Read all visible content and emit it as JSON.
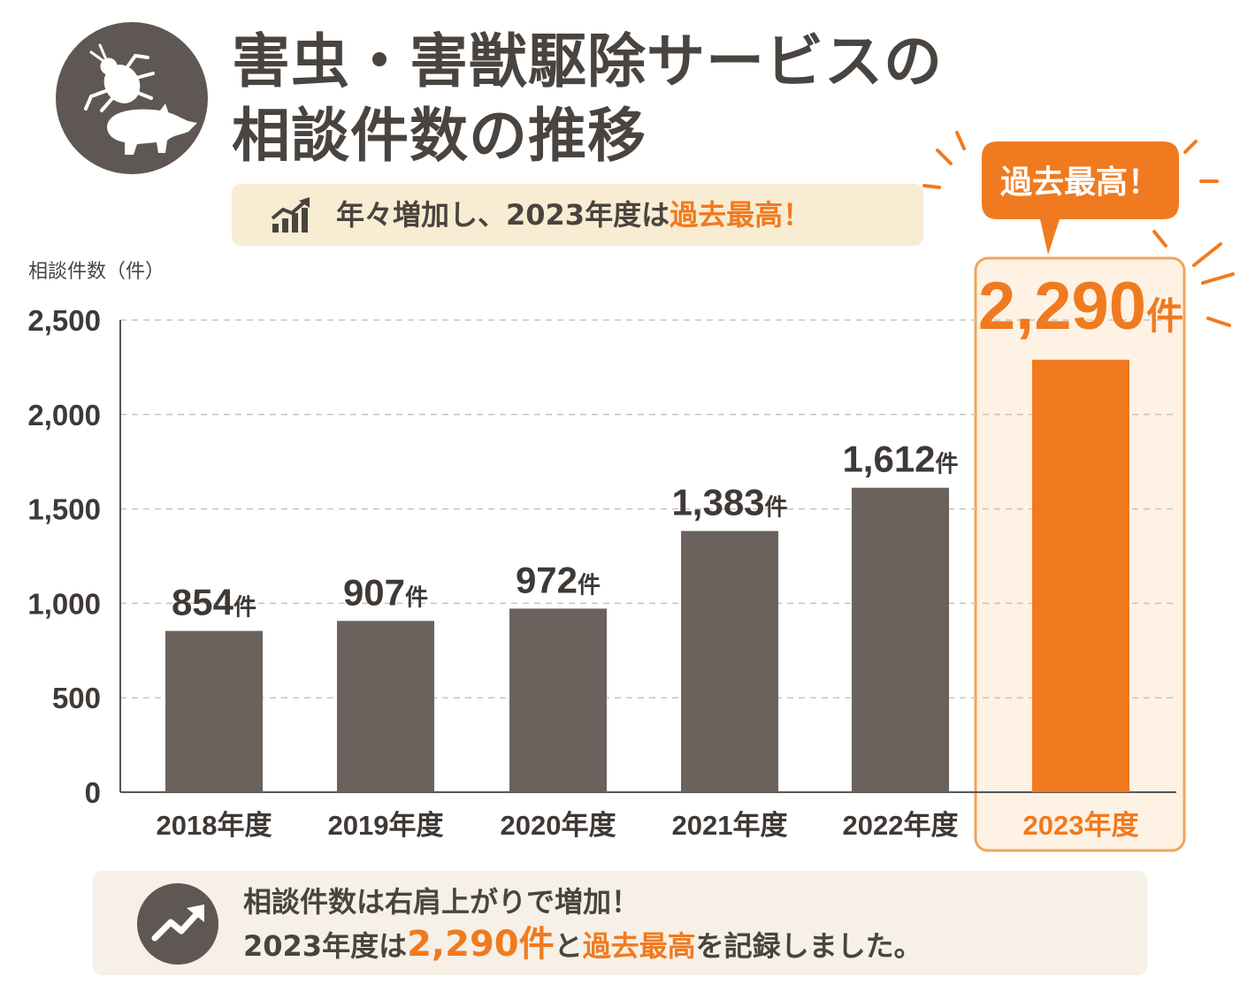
{
  "header": {
    "title_line1": "害虫・害獣駆除サービスの",
    "title_line2": "相談件数の推移",
    "subtitle_pre": "年々増加し、2023年度は",
    "subtitle_highlight": "過去最高！",
    "icon": "bug-and-animal-icon"
  },
  "chart_data": {
    "type": "bar",
    "ylabel": "相談件数（件）",
    "ylim": [
      0,
      2500
    ],
    "yticks": [
      "0",
      "500",
      "1,000",
      "1,500",
      "2,000",
      "2,500"
    ],
    "ytick_values": [
      0,
      500,
      1000,
      1500,
      2000,
      2500
    ],
    "grid": true,
    "categories": [
      "2018年度",
      "2019年度",
      "2020年度",
      "2021年度",
      "2022年度",
      "2023年度"
    ],
    "values": [
      854,
      907,
      972,
      1383,
      1612,
      2290
    ],
    "value_labels": [
      "854",
      "907",
      "972",
      "1,383",
      "1,612",
      "2,290"
    ],
    "unit": "件",
    "highlight_index": 5,
    "callout": "過去最高！",
    "colors": {
      "bar": "#6b625e",
      "highlight": "#f07a1f",
      "highlight_bg": "#fdf2e4"
    }
  },
  "footer": {
    "line1": "相談件数は右肩上がりで増加！",
    "line2_pre": "2023年度は",
    "line2_value": "2,290件",
    "line2_mid": "と",
    "line2_highlight": "過去最高",
    "line2_post": "を記録しました。",
    "icon": "trend-up-icon"
  }
}
